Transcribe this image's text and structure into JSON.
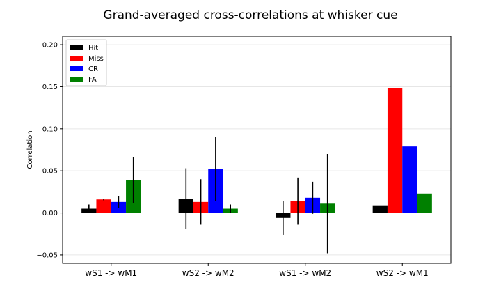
{
  "chart_data": {
    "type": "bar",
    "title": "Grand-averaged cross-correlations at whisker cue",
    "xlabel": "",
    "ylabel": "Correlation",
    "categories": [
      "wS1 -> wM1",
      "wS2 -> wM2",
      "wS1 -> wM2",
      "wS2 -> wM1"
    ],
    "ylim": [
      -0.06,
      0.21
    ],
    "yticks": [
      -0.05,
      0.0,
      0.05,
      0.1,
      0.15,
      0.2
    ],
    "ytick_labels": [
      "−0.05",
      "0.00",
      "0.05",
      "0.10",
      "0.15",
      "0.20"
    ],
    "grid": "horizontal",
    "legend_position": "top-left",
    "series": [
      {
        "name": "Hit",
        "color": "#000000",
        "values": [
          0.005,
          0.017,
          -0.006,
          0.009
        ],
        "errors": [
          0.005,
          0.036,
          0.02,
          0.0
        ]
      },
      {
        "name": "Miss",
        "color": "#ff0000",
        "values": [
          0.016,
          0.013,
          0.014,
          0.148
        ],
        "errors": [
          0.001,
          0.027,
          0.028,
          0.0
        ]
      },
      {
        "name": "CR",
        "color": "#0000ff",
        "values": [
          0.013,
          0.052,
          0.018,
          0.079
        ],
        "errors": [
          0.007,
          0.038,
          0.019,
          0.0
        ]
      },
      {
        "name": "FA",
        "color": "#008000",
        "values": [
          0.039,
          0.005,
          0.011,
          0.023
        ],
        "errors": [
          0.027,
          0.005,
          0.059,
          0.0
        ]
      }
    ]
  }
}
